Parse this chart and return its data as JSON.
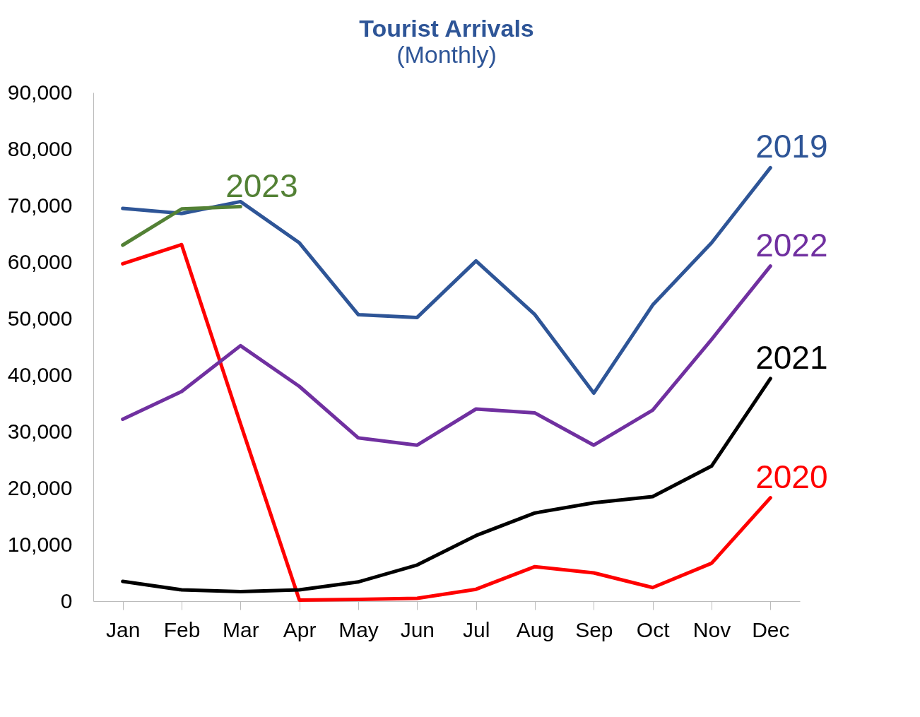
{
  "chart_data": {
    "type": "line",
    "title": "Tourist Arrivals",
    "subtitle": "(Monthly)",
    "categories": [
      "Jan",
      "Feb",
      "Mar",
      "Apr",
      "May",
      "Jun",
      "Jul",
      "Aug",
      "Sep",
      "Oct",
      "Nov",
      "Dec"
    ],
    "series": [
      {
        "name": "2019",
        "color": "#2e5597",
        "values": [
          69500,
          68600,
          70700,
          63400,
          50700,
          50200,
          60200,
          50700,
          36800,
          52400,
          63400,
          76700
        ]
      },
      {
        "name": "2020",
        "color": "#ff0000",
        "values": [
          59700,
          63100,
          31400,
          200,
          300,
          500,
          2100,
          6100,
          5000,
          2400,
          6700,
          18300
        ]
      },
      {
        "name": "2021",
        "color": "#000000",
        "values": [
          3500,
          2000,
          1700,
          2000,
          3400,
          6400,
          11600,
          15600,
          17400,
          18500,
          23900,
          39400
        ]
      },
      {
        "name": "2022",
        "color": "#7030a0",
        "values": [
          32200,
          37100,
          45200,
          38000,
          28900,
          27600,
          34000,
          33300,
          27600,
          33800,
          46300,
          59300
        ]
      },
      {
        "name": "2023",
        "color": "#538135",
        "values": [
          63000,
          69400,
          69800,
          null,
          null,
          null,
          null,
          null,
          null,
          null,
          null,
          null
        ]
      }
    ],
    "ylim": [
      0,
      90000
    ],
    "yticks": [
      0,
      {
        "value": 10000,
        "label": "10,000"
      },
      {
        "value": 20000,
        "label": "20,000"
      },
      {
        "value": 30000,
        "label": "30,000"
      },
      {
        "value": 40000,
        "label": "40,000"
      },
      {
        "value": 50000,
        "label": "50,000"
      },
      {
        "value": 60000,
        "label": "60,000"
      },
      {
        "value": 70000,
        "label": "70,000"
      },
      {
        "value": 80000,
        "label": "80,000"
      },
      {
        "value": 90000,
        "label": "90,000"
      }
    ],
    "grid": false,
    "legend": false,
    "marker": "none",
    "line_style": "solid"
  }
}
